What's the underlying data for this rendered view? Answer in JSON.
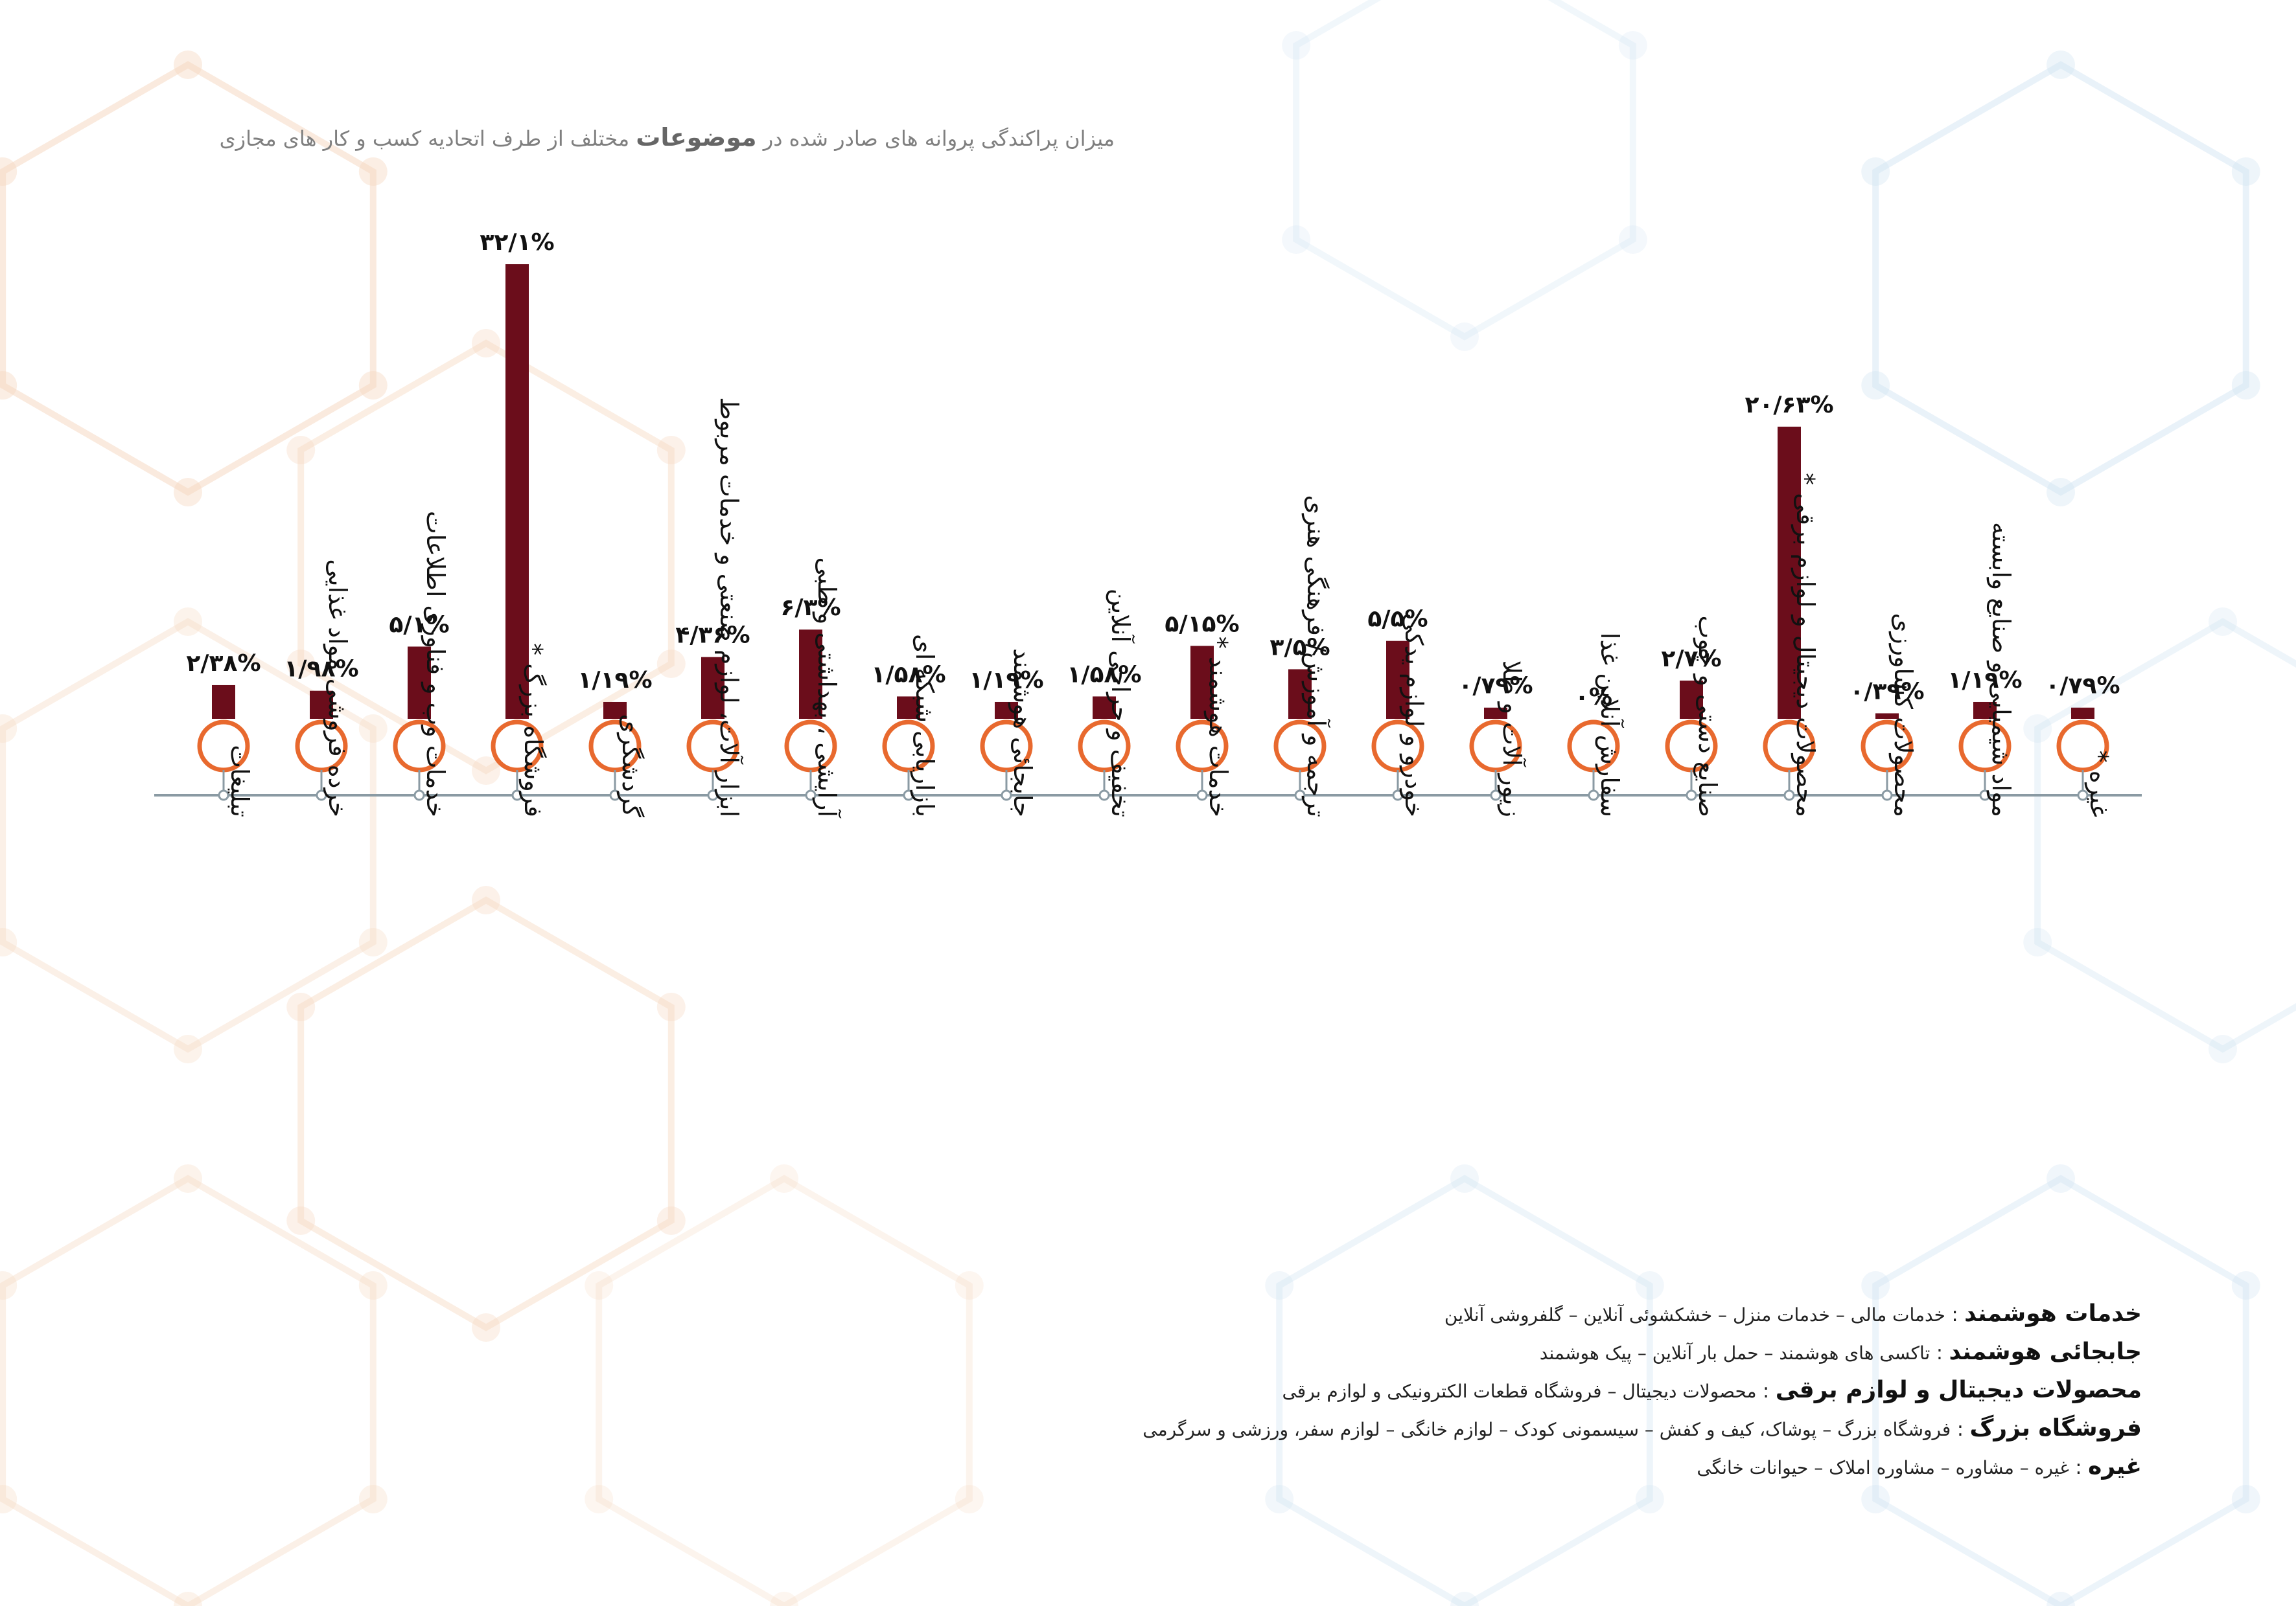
{
  "title": {
    "before": "میزان پراکندگی پروانه های صادر شده در",
    "bold": "موضوعات",
    "after": "مختلف از طرف اتحادیه کسب و کار های مجازی"
  },
  "colors": {
    "bar": "#6b0d1b",
    "circle_stroke": "#e8692e",
    "axis": "#8a9aa3",
    "label": "#111111",
    "bg_hex_warm": "#f6d9c2",
    "bg_hex_cool": "#cfe3f2"
  },
  "chart_data": {
    "type": "bar",
    "title": "",
    "xlabel": "",
    "ylabel": "",
    "ylim": [
      0,
      32.1
    ],
    "categories": [
      "تبلیغات",
      "خرده فروشی مواد غذایی",
      "خدمات وب و فناوری اطلاعات",
      "فروشگاه بزرگ *",
      "گردشگری",
      "ابزار آلات، لوازم صنعتی و خدمات مربوط",
      "آرایشی ، بهداشتی و طبی",
      "بازاریابی شبکه ای",
      "جابجائی هوشمند",
      "تخفیف و حراجی آنلاین",
      "خدمات هوشمند *",
      "ترجمه و آموزش/ فرهنگی هنری",
      "خودرو و لوازم یدکی",
      "زیور آلات و طلا",
      "سفارش آنلاین غذا",
      "صنایع دستی و چوب",
      "محصولات دیجیتال و  لوازم برقی *",
      "محصولات کشاورزی",
      "مواد شیمیایی و صنایع وابسته",
      "غیره *"
    ],
    "values": [
      2.38,
      1.98,
      5.1,
      32.1,
      1.19,
      4.36,
      6.3,
      1.58,
      1.19,
      1.58,
      5.15,
      3.5,
      5.5,
      0.79,
      0,
      2.7,
      20.63,
      0.39,
      1.19,
      0.79
    ],
    "value_labels": [
      "۲/۳۸%",
      "۱/۹۸%",
      "۵/۱%",
      "۳۲/۱%",
      "۱/۱۹%",
      "۴/۳۶%",
      "۶/۳%",
      "۱/۵۸%",
      "۱/۱۹%",
      "۱/۵۸%",
      "۵/۱۵%",
      "۳/۵%",
      "۵/۵%",
      "۰/۷۹%",
      "۰%",
      "۲/۷%",
      "۲۰/۶۳%",
      "۰/۳۹%",
      "۱/۱۹%",
      "۰/۷۹%"
    ]
  },
  "legend": [
    {
      "term": "خدمات هوشمند",
      "definition": "خدمات مالی – خدمات منزل – خشکشوئی آنلاین – گلفروشی آنلاین"
    },
    {
      "term": "جابجائی هوشمند",
      "definition": "تاکسی های هوشمند – حمل بار آنلاین – پیک هوشمند"
    },
    {
      "term": "محصولات دیجیتال و لوازم برقی",
      "definition": "محصولات دیجیتال – فروشگاه قطعات الکترونیکی و لوازم برقی"
    },
    {
      "term": "فروشگاه بزرگ",
      "definition": "فروشگاه بزرگ – پوشاک، کیف و کفش – سیسمونی کودک – لوازم خانگی – لوازم سفر، ورزشی و سرگرمی"
    },
    {
      "term": "غیره",
      "definition": "غیره – مشاوره – مشاوره املاک – حیوانات خانگی"
    }
  ]
}
